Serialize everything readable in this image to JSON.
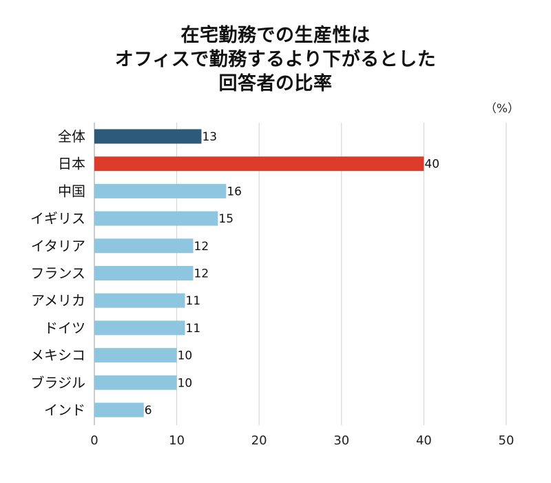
{
  "title_lines": [
    "在宅勤務での生産性は",
    "オフィスで勤務するより下がるとした",
    "回答者の比率"
  ],
  "unit_label": "（%）",
  "chart_data": {
    "type": "bar",
    "orientation": "horizontal",
    "title": "在宅勤務での生産性はオフィスで勤務するより下がるとした回答者の比率",
    "xlabel": "",
    "ylabel": "",
    "categories": [
      "全体",
      "日本",
      "中国",
      "イギリス",
      "イタリア",
      "フランス",
      "アメリカ",
      "ドイツ",
      "メキシコ",
      "ブラジル",
      "インド"
    ],
    "values": [
      13,
      40,
      16,
      15,
      12,
      12,
      11,
      11,
      10,
      10,
      6
    ],
    "xlim": [
      0,
      50
    ],
    "xticks": [
      0,
      10,
      20,
      30,
      40,
      50
    ],
    "grid": "vertical",
    "legend": "none",
    "colors": {
      "全体": "#2e5a7a",
      "日本": "#dd3b2a",
      "default": "#8ec6e0"
    },
    "data_labels": true
  }
}
